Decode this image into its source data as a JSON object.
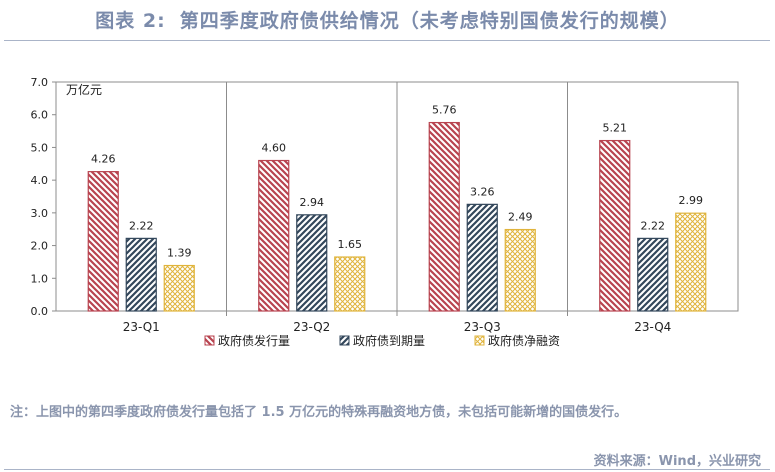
{
  "header": {
    "label": "图表 2:",
    "title": "第四季度政府债供给情况（未考虑特别国债发行的规模）"
  },
  "chart_data": {
    "type": "bar",
    "unit": "万亿元",
    "categories": [
      "23-Q1",
      "23-Q2",
      "23-Q3",
      "23-Q4"
    ],
    "ylim": [
      0,
      7
    ],
    "yticks": [
      "0.0",
      "1.0",
      "2.0",
      "3.0",
      "4.0",
      "5.0",
      "6.0",
      "7.0"
    ],
    "grid": false,
    "legend_position": "bottom",
    "series": [
      {
        "name": "政府债发行量",
        "values": [
          4.26,
          4.6,
          5.76,
          5.21
        ],
        "labels": [
          "4.26",
          "4.60",
          "5.76",
          "5.21"
        ],
        "color": "#b8434f",
        "pattern": "diagonal-right"
      },
      {
        "name": "政府债到期量",
        "values": [
          2.22,
          2.94,
          3.26,
          2.22
        ],
        "labels": [
          "2.22",
          "2.94",
          "3.26",
          "2.22"
        ],
        "color": "#33475b",
        "pattern": "diagonal-left"
      },
      {
        "name": "政府债净融资",
        "values": [
          1.39,
          1.65,
          2.49,
          2.99
        ],
        "labels": [
          "1.39",
          "1.65",
          "2.49",
          "2.99"
        ],
        "color": "#e0b43c",
        "pattern": "crosshatch"
      }
    ]
  },
  "note": "注：上图中的第四季度政府债发行量包括了 1.5 万亿元的特殊再融资地方债，未包括可能新增的国债发行。",
  "source": "资料来源：Wind，兴业研究"
}
